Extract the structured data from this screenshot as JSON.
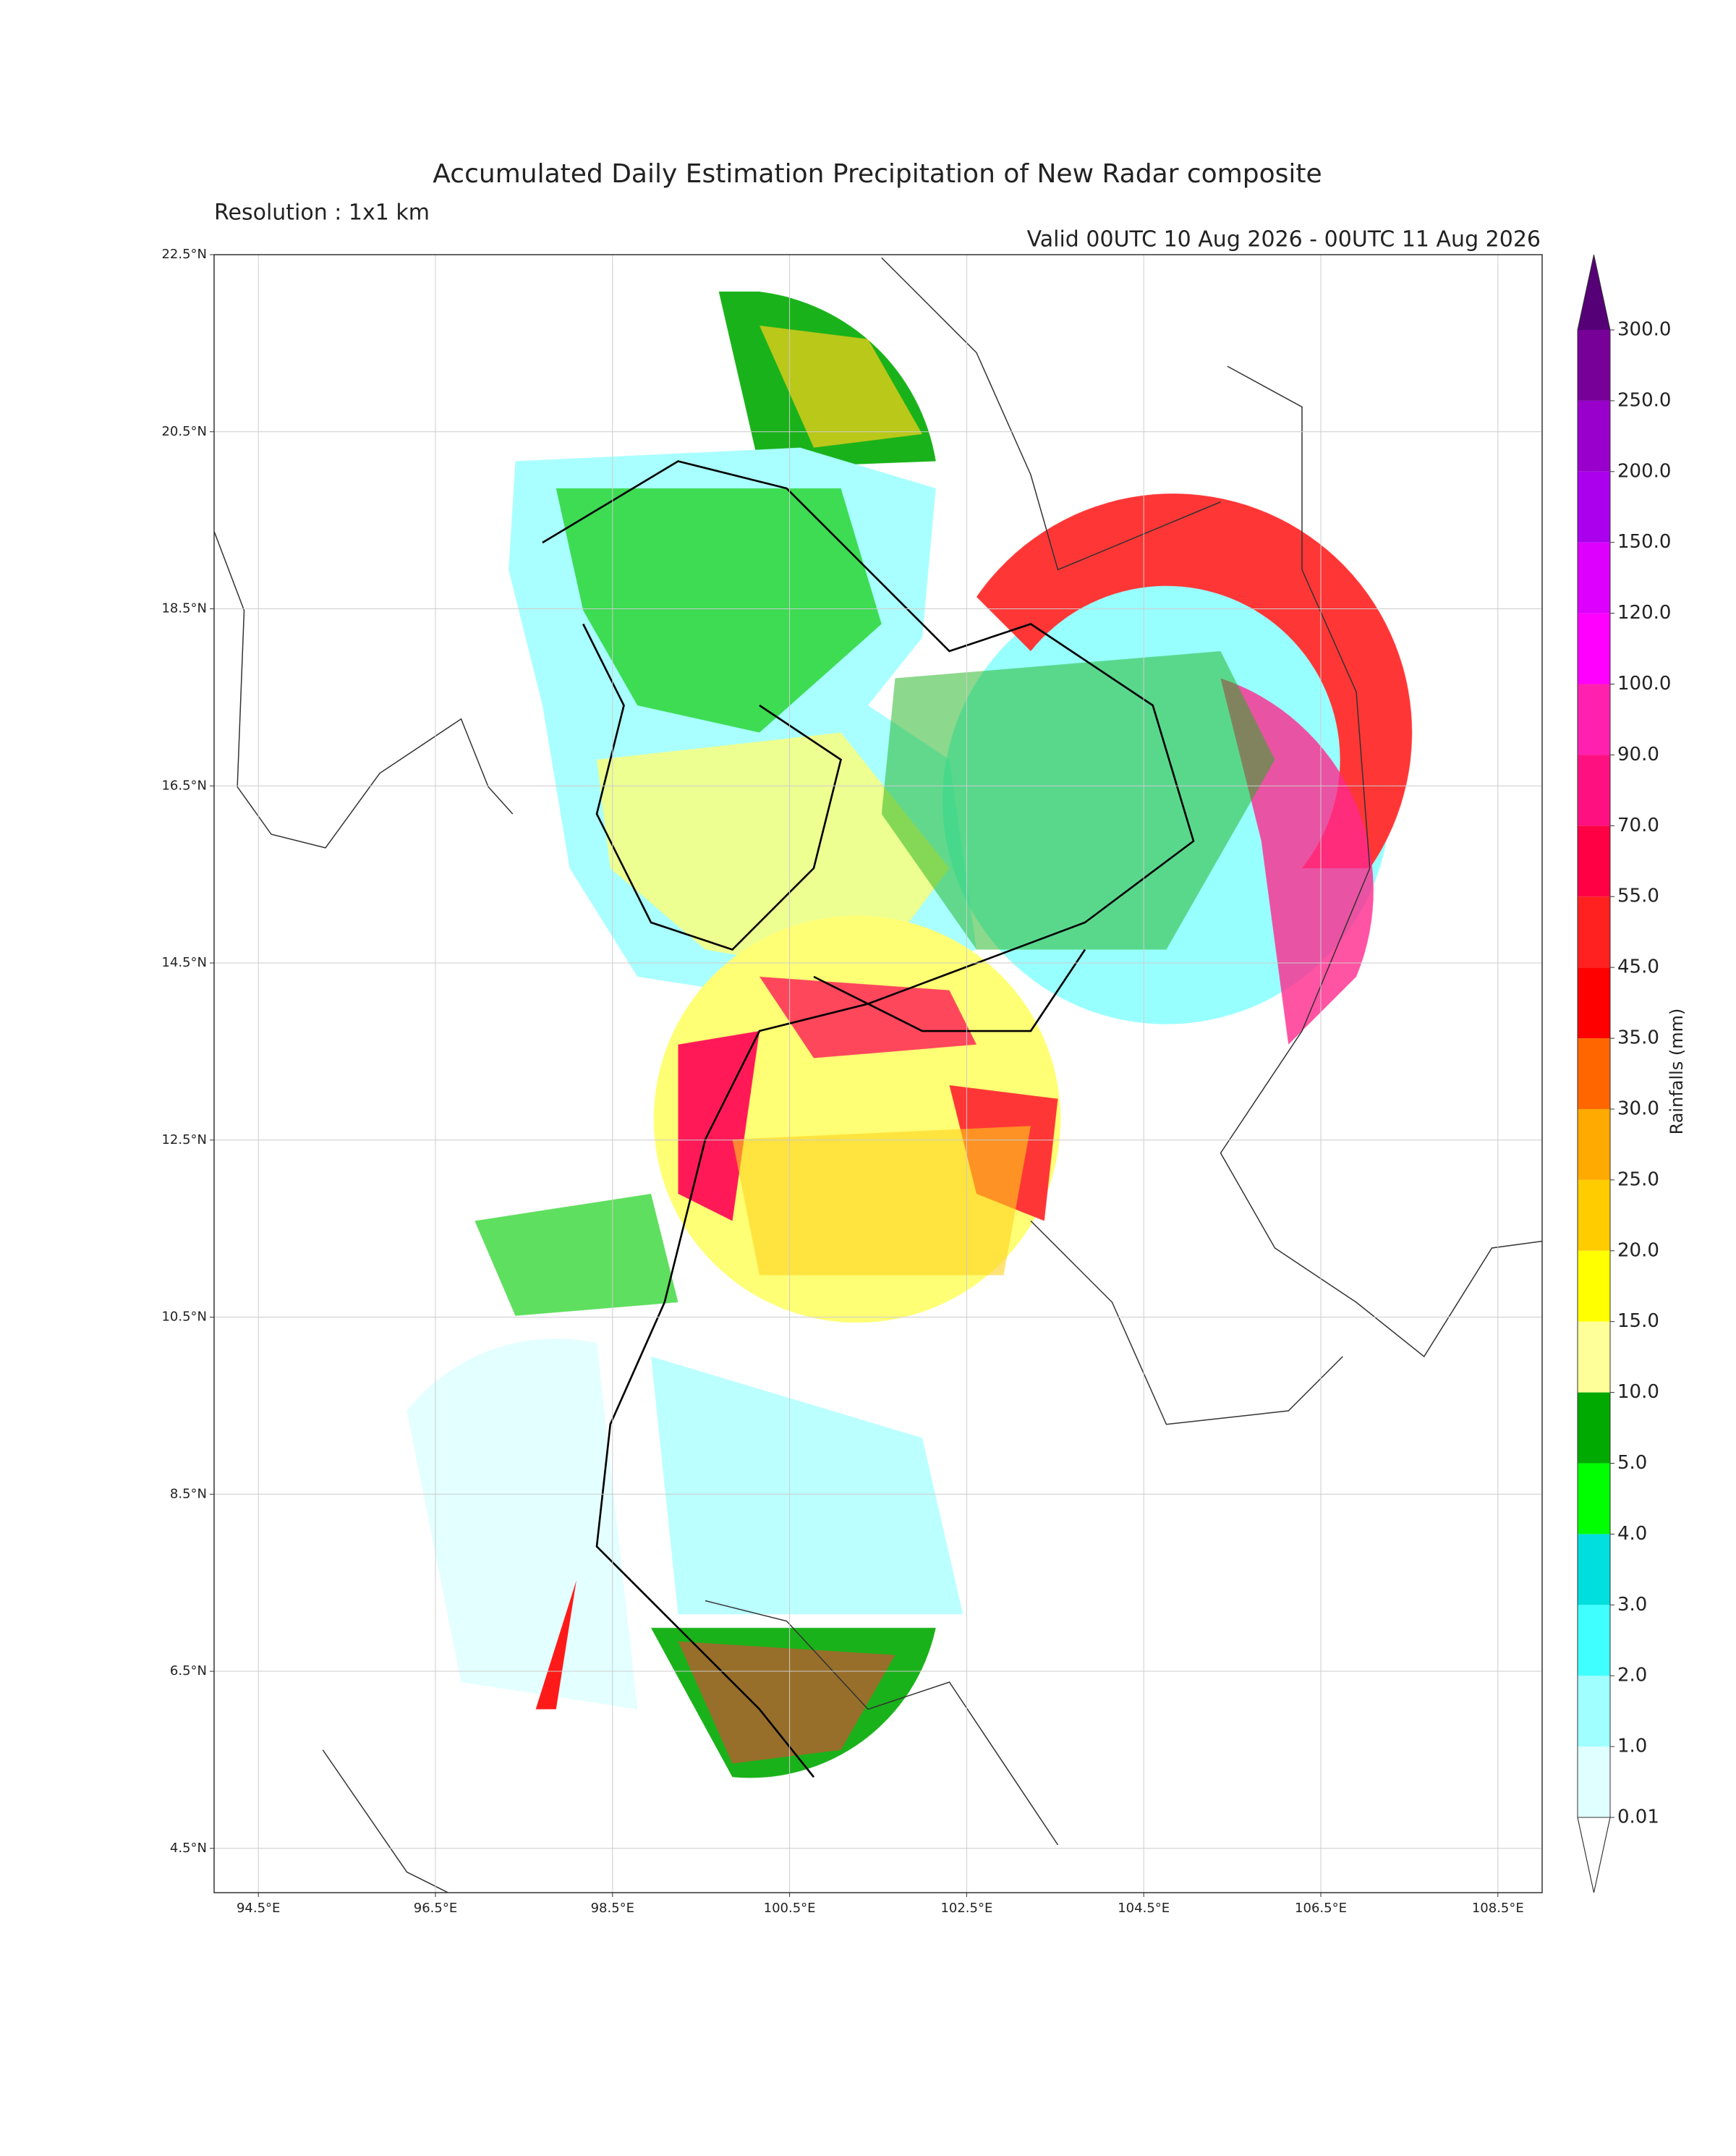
{
  "header": {
    "title": "Accumulated Daily Estimation Precipitation of New Radar composite",
    "resolution": "Resolution : 1x1 km",
    "valid": "Valid 00UTC 10 Aug 2026 - 00UTC 11 Aug 2026"
  },
  "map": {
    "xlim": [
      94,
      109
    ],
    "ylim": [
      4,
      22.5
    ],
    "grid": true,
    "lon_ticks": [
      {
        "value": 94.5,
        "label": "94.5°E"
      },
      {
        "value": 96.5,
        "label": "96.5°E"
      },
      {
        "value": 98.5,
        "label": "98.5°E"
      },
      {
        "value": 100.5,
        "label": "100.5°E"
      },
      {
        "value": 102.5,
        "label": "102.5°E"
      },
      {
        "value": 104.5,
        "label": "104.5°E"
      },
      {
        "value": 106.5,
        "label": "106.5°E"
      },
      {
        "value": 108.5,
        "label": "108.5°E"
      }
    ],
    "lat_ticks": [
      {
        "value": 22.5,
        "label": "22.5°N"
      },
      {
        "value": 20.5,
        "label": "20.5°N"
      },
      {
        "value": 18.5,
        "label": "18.5°N"
      },
      {
        "value": 16.5,
        "label": "16.5°N"
      },
      {
        "value": 14.5,
        "label": "14.5°N"
      },
      {
        "value": 12.5,
        "label": "12.5°N"
      },
      {
        "value": 10.5,
        "label": "10.5°N"
      },
      {
        "value": 8.5,
        "label": "8.5°N"
      },
      {
        "value": 6.5,
        "label": "6.5°N"
      },
      {
        "value": 4.5,
        "label": "4.5°N"
      }
    ]
  },
  "colorbar": {
    "label": "Rainfalls (mm)",
    "levels": [
      0.01,
      {
        "value": 1,
        "label": "1.0"
      },
      {
        "value": 2,
        "label": "2.0"
      },
      {
        "value": 3,
        "label": "3.0"
      },
      {
        "value": 4,
        "label": "4.0"
      },
      {
        "value": 5,
        "label": "5.0"
      },
      {
        "value": 10,
        "label": "10.0"
      },
      {
        "value": 15,
        "label": "15.0"
      },
      {
        "value": 20,
        "label": "20.0"
      },
      {
        "value": 25,
        "label": "25.0"
      },
      {
        "value": 30,
        "label": "30.0"
      },
      {
        "value": 35,
        "label": "35.0"
      },
      {
        "value": 45,
        "label": "45.0"
      },
      {
        "value": 55,
        "label": "55.0"
      },
      {
        "value": 70,
        "label": "70.0"
      },
      {
        "value": 90,
        "label": "90.0"
      },
      {
        "value": 100,
        "label": "100.0"
      },
      {
        "value": 120,
        "label": "120.0"
      },
      {
        "value": 150,
        "label": "150.0"
      },
      {
        "value": 200,
        "label": "200.0"
      },
      {
        "value": 250,
        "label": "250.0"
      },
      {
        "value": 300,
        "label": "300.0"
      }
    ],
    "colors": [
      "#e0ffff",
      "#a0ffff",
      "#40ffff",
      "#00dede",
      "#00ff00",
      "#00aa00",
      "#ffff99",
      "#ffff00",
      "#ffcc00",
      "#ffaa00",
      "#ff6600",
      "#ff0000",
      "#ff2020",
      "#ff0044",
      "#ff1080",
      "#ff20b0",
      "#ff00ff",
      "#dd00ff",
      "#aa00ee",
      "#9900cc",
      "#770099"
    ],
    "over_color": "#550077",
    "under_color": "#ffffff"
  }
}
